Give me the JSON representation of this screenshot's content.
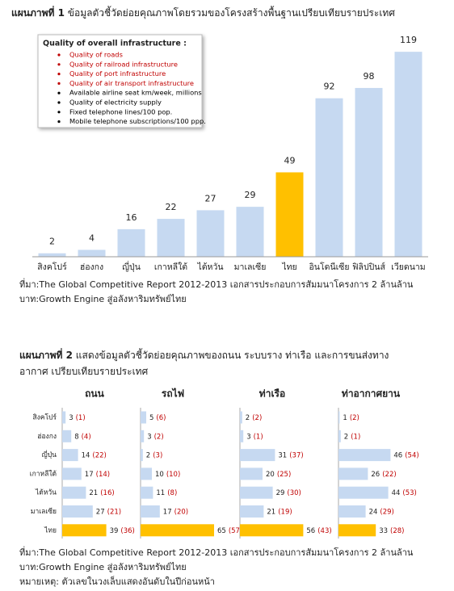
{
  "chart_data": [
    {
      "type": "bar",
      "title_prefix": "แผนภาพที่ 1",
      "title": "ข้อมูลตัวชี้วัดย่อยคุณภาพโดยรวมของโครงสร้างพื้นฐานเปรียบเทียบรายประเทศ",
      "categories": [
        "สิงคโปร์",
        "ฮ่องกง",
        "ญี่ปุ่น",
        "เกาหลีใต้",
        "ไต้หวัน",
        "มาเลเซีย",
        "ไทย",
        "อินโดนีเซีย",
        "ฟิลิปปินส์",
        "เวียดนาม"
      ],
      "values": [
        2,
        4,
        16,
        22,
        27,
        29,
        49,
        92,
        98,
        119
      ],
      "colors": [
        "#c6d9f1",
        "#c6d9f1",
        "#c6d9f1",
        "#c6d9f1",
        "#c6d9f1",
        "#c6d9f1",
        "#ffc000",
        "#c6d9f1",
        "#c6d9f1",
        "#c6d9f1"
      ],
      "ylim": [
        0,
        120
      ],
      "legend": {
        "title": "Quality of overall infrastructure :",
        "items": [
          {
            "text": "Quality of roads",
            "color": "#c00000"
          },
          {
            "text": "Quality of railroad infrastructure",
            "color": "#c00000"
          },
          {
            "text": "Quality of port infrastructure",
            "color": "#c00000"
          },
          {
            "text": "Quality of air transport infrastructure",
            "color": "#c00000"
          },
          {
            "text": "Available airline seat km/week, millions",
            "color": "#000000"
          },
          {
            "text": "Quality of electricity supply",
            "color": "#000000"
          },
          {
            "text": "Fixed telephone lines/100 pop.",
            "color": "#000000"
          },
          {
            "text": "Mobile telephone subscriptions/100 ppp.",
            "color": "#000000"
          }
        ]
      }
    },
    {
      "type": "panel-bar",
      "title_prefix": "แผนภาพที่ 2",
      "title": "แสดงข้อมูลตัวชี้วัดย่อยคุณภาพของถนน ระบบราง ท่าเรือ และการขนส่งทางอากาศ เปรียบเทียบรายประเทศ",
      "categories": [
        "สิงคโปร์",
        "ฮ่องกง",
        "ญี่ปุ่น",
        "เกาหลีใต้",
        "ไต้หวัน",
        "มาเลเซีย",
        "ไทย"
      ],
      "colors": [
        "#c6d9f1",
        "#c6d9f1",
        "#c6d9f1",
        "#c6d9f1",
        "#c6d9f1",
        "#c6d9f1",
        "#ffc000"
      ],
      "rank_color": "#c00000",
      "xlim": [
        0,
        70
      ],
      "panels": [
        {
          "name": "ถนน",
          "values": [
            3,
            8,
            14,
            17,
            21,
            27,
            39
          ],
          "previous_rank_labels": [
            "(1)",
            "(4)",
            "(22)",
            "(14)",
            "(16)",
            "(21)",
            "(36)"
          ]
        },
        {
          "name": "รถไฟ",
          "values": [
            5,
            3,
            2,
            10,
            11,
            17,
            65
          ],
          "previous_rank_labels": [
            "(6)",
            "(2)",
            "(3)",
            "(10)",
            "(8)",
            "(20)",
            "(57)"
          ]
        },
        {
          "name": "ท่าเรือ",
          "values": [
            2,
            3,
            31,
            20,
            29,
            21,
            56
          ],
          "previous_rank_labels": [
            "(2)",
            "(1)",
            "(37)",
            "(25)",
            "(30)",
            "(19)",
            "(43)"
          ]
        },
        {
          "name": "ท่าอากาศยาน",
          "values": [
            1,
            2,
            46,
            26,
            44,
            24,
            33
          ],
          "previous_rank_labels": [
            "(2)",
            "(1)",
            "(54)",
            "(22)",
            "(53)",
            "(29)",
            "(28)"
          ]
        }
      ]
    }
  ],
  "sources": [
    "ที่มา:The Global Competitive Report 2012-2013 เอกสารประกอบการสัมมนาโครงการ 2 ล้านล้านบาท:Growth Engine สู่อลังหาริมทรัพย์ไทย",
    "ที่มา:The Global Competitive Report 2012-2013 เอกสารประกอบการสัมมนาโครงการ 2 ล้านล้านบาท:Growth Engine สู่อลังหาริมทรัพย์ไทย"
  ],
  "note": "หมายเหตุ: ตัวเลขในวงเล็บแสดงอันดับในปีก่อนหน้า"
}
